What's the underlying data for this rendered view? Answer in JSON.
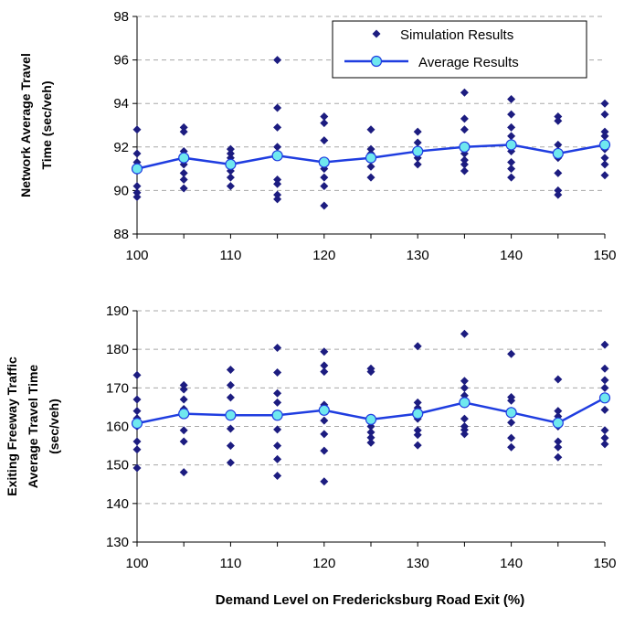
{
  "chart_data": [
    {
      "type": "scatter",
      "title": "",
      "xlabel": "",
      "ylabel": [
        "Network Average Travel",
        "Time (sec/veh)"
      ],
      "xlim": [
        100,
        150
      ],
      "ylim": [
        88,
        98
      ],
      "xticks": [
        "100",
        "110",
        "120",
        "130",
        "140",
        "150"
      ],
      "yticks": [
        "88",
        "90",
        "92",
        "94",
        "96",
        "98"
      ],
      "grid": "horizontal dashed",
      "legend": "top-right",
      "series": [
        {
          "name": "Simulation Results",
          "marker": "diamond",
          "color": "#1c1c80",
          "points": [
            [
              100,
              92.8
            ],
            [
              100,
              91.7
            ],
            [
              100,
              91.3
            ],
            [
              100,
              90.9
            ],
            [
              100,
              90.2
            ],
            [
              100,
              89.9
            ],
            [
              100,
              89.7
            ],
            [
              105,
              92.9
            ],
            [
              105,
              92.7
            ],
            [
              105,
              91.8
            ],
            [
              105,
              91.4
            ],
            [
              105,
              91.2
            ],
            [
              105,
              90.8
            ],
            [
              105,
              90.5
            ],
            [
              105,
              90.1
            ],
            [
              110,
              91.9
            ],
            [
              110,
              91.7
            ],
            [
              110,
              91.5
            ],
            [
              110,
              91.3
            ],
            [
              110,
              90.9
            ],
            [
              110,
              90.6
            ],
            [
              110,
              90.2
            ],
            [
              115,
              96.0
            ],
            [
              115,
              93.8
            ],
            [
              115,
              92.9
            ],
            [
              115,
              92.0
            ],
            [
              115,
              91.7
            ],
            [
              115,
              90.5
            ],
            [
              115,
              90.3
            ],
            [
              115,
              89.8
            ],
            [
              115,
              89.6
            ],
            [
              120,
              93.4
            ],
            [
              120,
              93.1
            ],
            [
              120,
              92.3
            ],
            [
              120,
              91.3
            ],
            [
              120,
              91.0
            ],
            [
              120,
              90.6
            ],
            [
              120,
              90.2
            ],
            [
              120,
              89.3
            ],
            [
              125,
              92.8
            ],
            [
              125,
              91.9
            ],
            [
              125,
              91.7
            ],
            [
              125,
              91.6
            ],
            [
              125,
              91.1
            ],
            [
              125,
              90.6
            ],
            [
              130,
              92.7
            ],
            [
              130,
              92.2
            ],
            [
              130,
              91.7
            ],
            [
              130,
              91.5
            ],
            [
              130,
              91.2
            ],
            [
              135,
              94.5
            ],
            [
              135,
              93.3
            ],
            [
              135,
              92.8
            ],
            [
              135,
              91.9
            ],
            [
              135,
              91.7
            ],
            [
              135,
              91.4
            ],
            [
              135,
              91.2
            ],
            [
              135,
              90.9
            ],
            [
              140,
              94.2
            ],
            [
              140,
              93.5
            ],
            [
              140,
              92.9
            ],
            [
              140,
              92.5
            ],
            [
              140,
              92.1
            ],
            [
              140,
              91.8
            ],
            [
              140,
              91.3
            ],
            [
              140,
              91.0
            ],
            [
              140,
              90.6
            ],
            [
              145,
              93.4
            ],
            [
              145,
              93.2
            ],
            [
              145,
              92.1
            ],
            [
              145,
              91.8
            ],
            [
              145,
              91.5
            ],
            [
              145,
              90.8
            ],
            [
              145,
              90.0
            ],
            [
              145,
              89.8
            ],
            [
              150,
              94.0
            ],
            [
              150,
              93.5
            ],
            [
              150,
              92.7
            ],
            [
              150,
              92.5
            ],
            [
              150,
              91.9
            ],
            [
              150,
              91.5
            ],
            [
              150,
              91.2
            ],
            [
              150,
              90.7
            ]
          ]
        },
        {
          "name": "Average Results",
          "marker": "circle",
          "color": "#1f3de0",
          "marker_fill": "#6fe8ef",
          "x": [
            100,
            105,
            110,
            115,
            120,
            125,
            130,
            135,
            140,
            145,
            150
          ],
          "values": [
            91.0,
            91.5,
            91.2,
            91.6,
            91.3,
            91.5,
            91.8,
            92.0,
            92.1,
            91.7,
            92.1
          ]
        }
      ]
    },
    {
      "type": "scatter",
      "title": "",
      "xlabel": "Demand Level on Fredericksburg Road Exit (%)",
      "ylabel": [
        "Exiting Freeway Traffic",
        "Average Travel Time",
        "(sec/veh)"
      ],
      "xlim": [
        100,
        150
      ],
      "ylim": [
        130,
        190
      ],
      "xticks": [
        "100",
        "110",
        "120",
        "130",
        "140",
        "150"
      ],
      "yticks": [
        "130",
        "140",
        "150",
        "160",
        "170",
        "180",
        "190"
      ],
      "grid": "horizontal dashed",
      "legend": "none",
      "series": [
        {
          "name": "Simulation Results",
          "marker": "diamond",
          "color": "#1c1c80",
          "points": [
            [
              100,
              173.3
            ],
            [
              100,
              167.0
            ],
            [
              100,
              164.0
            ],
            [
              100,
              162.1
            ],
            [
              100,
              160.0
            ],
            [
              100,
              156.1
            ],
            [
              100,
              154.0
            ],
            [
              100,
              149.2
            ],
            [
              105,
              170.7
            ],
            [
              105,
              169.6
            ],
            [
              105,
              167.0
            ],
            [
              105,
              164.5
            ],
            [
              105,
              163.0
            ],
            [
              105,
              159.0
            ],
            [
              105,
              156.1
            ],
            [
              105,
              148.1
            ],
            [
              110,
              174.7
            ],
            [
              110,
              170.7
            ],
            [
              110,
              167.5
            ],
            [
              110,
              163.0
            ],
            [
              110,
              159.4
            ],
            [
              110,
              155.0
            ],
            [
              110,
              150.6
            ],
            [
              115,
              180.4
            ],
            [
              115,
              174.0
            ],
            [
              115,
              168.6
            ],
            [
              115,
              166.2
            ],
            [
              115,
              163.0
            ],
            [
              115,
              159.2
            ],
            [
              115,
              155.0
            ],
            [
              115,
              151.5
            ],
            [
              115,
              147.2
            ],
            [
              120,
              179.4
            ],
            [
              120,
              175.8
            ],
            [
              120,
              174.2
            ],
            [
              120,
              165.6
            ],
            [
              120,
              164.0
            ],
            [
              120,
              161.5
            ],
            [
              120,
              158.0
            ],
            [
              120,
              153.7
            ],
            [
              120,
              145.7
            ],
            [
              125,
              175.0
            ],
            [
              125,
              174.2
            ],
            [
              125,
              161.8
            ],
            [
              125,
              160.0
            ],
            [
              125,
              158.5
            ],
            [
              125,
              157.1
            ],
            [
              125,
              155.8
            ],
            [
              130,
              180.8
            ],
            [
              130,
              166.2
            ],
            [
              130,
              164.8
            ],
            [
              130,
              162.0
            ],
            [
              130,
              159.0
            ],
            [
              130,
              157.8
            ],
            [
              130,
              155.1
            ],
            [
              135,
              184.0
            ],
            [
              135,
              171.8
            ],
            [
              135,
              170.0
            ],
            [
              135,
              168.0
            ],
            [
              135,
              166.0
            ],
            [
              135,
              162.0
            ],
            [
              135,
              160.0
            ],
            [
              135,
              159.1
            ],
            [
              135,
              158.0
            ],
            [
              140,
              178.8
            ],
            [
              140,
              167.6
            ],
            [
              140,
              166.7
            ],
            [
              140,
              164.0
            ],
            [
              140,
              161.0
            ],
            [
              140,
              157.0
            ],
            [
              140,
              154.6
            ],
            [
              145,
              172.2
            ],
            [
              145,
              164.0
            ],
            [
              145,
              162.6
            ],
            [
              145,
              160.0
            ],
            [
              145,
              156.1
            ],
            [
              145,
              154.6
            ],
            [
              145,
              152.0
            ],
            [
              150,
              181.2
            ],
            [
              150,
              175.0
            ],
            [
              150,
              172.0
            ],
            [
              150,
              170.0
            ],
            [
              150,
              167.4
            ],
            [
              150,
              164.3
            ],
            [
              150,
              159.0
            ],
            [
              150,
              157.0
            ],
            [
              150,
              155.4
            ]
          ]
        },
        {
          "name": "Average Results",
          "marker": "circle",
          "color": "#1f3de0",
          "marker_fill": "#6fe8ef",
          "x": [
            100,
            105,
            110,
            115,
            120,
            125,
            130,
            135,
            140,
            145,
            150
          ],
          "values": [
            160.8,
            163.3,
            162.9,
            162.9,
            164.2,
            161.8,
            163.3,
            166.2,
            163.6,
            160.9,
            167.4
          ]
        }
      ]
    }
  ]
}
